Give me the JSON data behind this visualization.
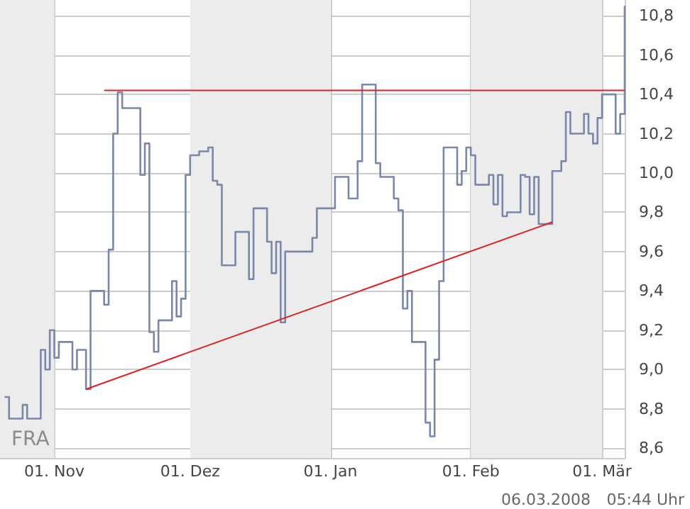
{
  "chart_data": {
    "type": "step",
    "x": [
      "2007-10-21",
      "2007-10-22",
      "2007-10-25",
      "2007-10-26",
      "2007-10-29",
      "2007-10-30",
      "2007-10-31",
      "2007-11-01",
      "2007-11-02",
      "2007-11-05",
      "2007-11-06",
      "2007-11-08",
      "2007-11-09",
      "2007-11-12",
      "2007-11-13",
      "2007-11-14",
      "2007-11-15",
      "2007-11-16",
      "2007-11-20",
      "2007-11-21",
      "2007-11-22",
      "2007-11-23",
      "2007-11-24",
      "2007-11-27",
      "2007-11-28",
      "2007-11-29",
      "2007-11-30",
      "2007-12-01",
      "2007-12-03",
      "2007-12-05",
      "2007-12-06",
      "2007-12-07",
      "2007-12-08",
      "2007-12-11",
      "2007-12-14",
      "2007-12-15",
      "2007-12-18",
      "2007-12-19",
      "2007-12-20",
      "2007-12-21",
      "2007-12-22",
      "2007-12-28",
      "2007-12-29",
      "2008-01-02",
      "2008-01-05",
      "2008-01-07",
      "2008-01-08",
      "2008-01-11",
      "2008-01-12",
      "2008-01-15",
      "2008-01-16",
      "2008-01-17",
      "2008-01-18",
      "2008-01-19",
      "2008-01-22",
      "2008-01-23",
      "2008-01-24",
      "2008-01-25",
      "2008-01-26",
      "2008-01-29",
      "2008-01-30",
      "2008-01-31",
      "2008-02-01",
      "2008-02-02",
      "2008-02-05",
      "2008-02-06",
      "2008-02-07",
      "2008-02-08",
      "2008-02-09",
      "2008-02-12",
      "2008-02-13",
      "2008-02-14",
      "2008-02-15",
      "2008-02-16",
      "2008-02-19",
      "2008-02-21",
      "2008-02-22",
      "2008-02-23",
      "2008-02-26",
      "2008-02-27",
      "2008-02-28",
      "2008-02-29",
      "2008-03-01",
      "2008-03-04",
      "2008-03-05",
      "2008-03-06"
    ],
    "series": [
      {
        "color": "#7a87a8",
        "values": [
          8.86,
          8.75,
          8.82,
          8.75,
          9.1,
          9.0,
          9.2,
          9.06,
          9.14,
          9.0,
          9.1,
          8.9,
          9.4,
          9.33,
          9.61,
          10.2,
          10.41,
          10.33,
          9.99,
          10.15,
          9.19,
          9.09,
          9.25,
          9.45,
          9.27,
          9.36,
          9.99,
          10.09,
          10.11,
          10.13,
          9.96,
          9.94,
          9.53,
          9.7,
          9.46,
          9.82,
          9.65,
          9.49,
          9.65,
          9.24,
          9.6,
          9.67,
          9.82,
          9.98,
          9.87,
          10.06,
          10.45,
          10.05,
          9.98,
          9.87,
          9.81,
          9.31,
          9.4,
          9.14,
          8.73,
          8.66,
          9.05,
          9.45,
          10.13,
          9.94,
          10.01,
          10.13,
          10.09,
          9.94,
          9.99,
          9.84,
          9.99,
          9.78,
          9.8,
          9.99,
          9.98,
          9.79,
          9.98,
          9.74,
          10.01,
          10.06,
          10.31,
          10.2,
          10.3,
          10.2,
          10.15,
          10.28,
          10.4,
          10.2,
          10.3,
          10.85
        ]
      },
      {
        "type": "line",
        "color": "#e02020",
        "x": [
          "2007-11-12",
          "2008-03-06"
        ],
        "values": [
          10.42,
          10.42
        ]
      },
      {
        "type": "line",
        "color": "#e02020",
        "x": [
          "2007-11-08",
          "2008-02-19"
        ],
        "values": [
          8.9,
          9.75
        ]
      }
    ],
    "xlim": [
      "2007-10-20",
      "2008-03-06"
    ],
    "xticks": [
      {
        "value": "2007-11-01",
        "label": "01. Nov"
      },
      {
        "value": "2007-12-01",
        "label": "01. Dez"
      },
      {
        "value": "2008-01-01",
        "label": "01. Jan"
      },
      {
        "value": "2008-02-01",
        "label": "01. Feb"
      },
      {
        "value": "2008-03-01",
        "label": "01. Mär"
      }
    ],
    "ylim": [
      8.55,
      10.88
    ],
    "yticks": [
      {
        "value": 8.6,
        "label": "8,6"
      },
      {
        "value": 8.8,
        "label": "8,8"
      },
      {
        "value": 9.0,
        "label": "9,0"
      },
      {
        "value": 9.2,
        "label": "9,2"
      },
      {
        "value": 9.4,
        "label": "9,4"
      },
      {
        "value": 9.6,
        "label": "9,6"
      },
      {
        "value": 9.8,
        "label": "9,8"
      },
      {
        "value": 10.0,
        "label": "10,0"
      },
      {
        "value": 10.2,
        "label": "10,2"
      },
      {
        "value": 10.4,
        "label": "10,4"
      },
      {
        "value": 10.6,
        "label": "10,6"
      },
      {
        "value": 10.8,
        "label": "10,8"
      }
    ],
    "bands": [
      {
        "axis": "x",
        "from": "2007-10-20",
        "to": "2007-11-01",
        "color": "#ececec"
      },
      {
        "axis": "x",
        "from": "2007-12-01",
        "to": "2008-01-01",
        "color": "#ececec"
      },
      {
        "axis": "x",
        "from": "2008-02-01",
        "to": "2008-03-01",
        "color": "#ececec"
      }
    ],
    "grid": true,
    "annotations": [
      "FRA",
      "06.03.2008",
      "05:44 Uhr"
    ]
  }
}
